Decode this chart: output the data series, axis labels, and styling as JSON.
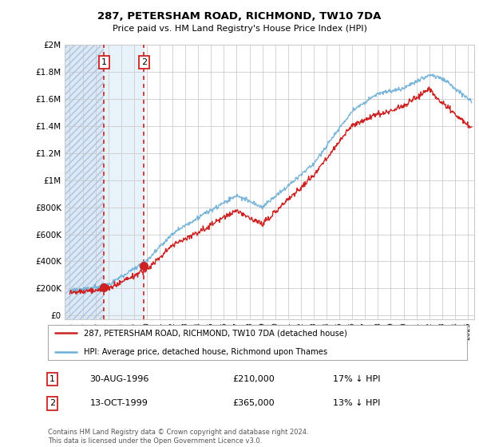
{
  "title": "287, PETERSHAM ROAD, RICHMOND, TW10 7DA",
  "subtitle": "Price paid vs. HM Land Registry's House Price Index (HPI)",
  "legend_line1": "287, PETERSHAM ROAD, RICHMOND, TW10 7DA (detached house)",
  "legend_line2": "HPI: Average price, detached house, Richmond upon Thames",
  "sale1_date": "30-AUG-1996",
  "sale1_price": "£210,000",
  "sale1_hpi": "17% ↓ HPI",
  "sale2_date": "13-OCT-1999",
  "sale2_price": "£365,000",
  "sale2_hpi": "13% ↓ HPI",
  "footer": "Contains HM Land Registry data © Crown copyright and database right 2024.\nThis data is licensed under the Open Government Licence v3.0.",
  "hpi_color": "#6baed6",
  "price_color": "#cc2222",
  "sale_marker_color": "#cc2222",
  "dashed_line_color": "#cc2222",
  "ylim_max": 2000000,
  "ylim_min": -30000,
  "yticks": [
    0,
    200000,
    400000,
    600000,
    800000,
    1000000,
    1200000,
    1400000,
    1600000,
    1800000,
    2000000
  ],
  "sale1_x": 1996.67,
  "sale2_x": 1999.78,
  "xstart": 1994.0,
  "xend": 2025.3
}
